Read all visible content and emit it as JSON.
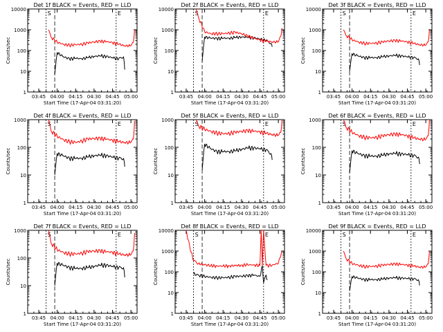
{
  "figure": {
    "xlabel_template": "Start Time (17-Apr-04 03:31:20)",
    "ylabel": "Counts/sec",
    "title_suffix": "BLACK = Events, RED = LLD",
    "y_ticks": [
      "1",
      "10",
      "100",
      "1000",
      "10000"
    ],
    "x_ticks": [
      "03:45",
      "04:00",
      "04:15",
      "04:30",
      "04:45",
      "05:00"
    ],
    "corner_labels": [
      "S",
      "E"
    ],
    "colors": {
      "events": "#000000",
      "lld": "#ff0000",
      "axes": "#000000"
    }
  },
  "chart_data": [
    {
      "type": "line",
      "title": "Det 1f BLACK = Events, RED = LLD",
      "yscale": "log",
      "ylim": [
        1,
        10000
      ],
      "xlabel": "Start Time (17-Apr-04 03:31:20)",
      "ylabel": "Counts/sec",
      "x_ticks": [
        "03:45",
        "04:00",
        "04:15",
        "04:30",
        "04:45",
        "05:00"
      ],
      "series": [
        {
          "name": "Events",
          "color": "#000000",
          "x": [
            "03:58",
            "04:00",
            "04:05",
            "04:10",
            "04:15",
            "04:20",
            "04:25",
            "04:30",
            "04:35",
            "04:40",
            "04:45",
            "04:50",
            "04:54",
            "04:55"
          ],
          "values": [
            7,
            80,
            50,
            40,
            42,
            40,
            45,
            52,
            55,
            52,
            45,
            40,
            50,
            12
          ]
        },
        {
          "name": "LLD",
          "color": "#ff0000",
          "x": [
            "03:53",
            "03:55",
            "04:00",
            "04:05",
            "04:10",
            "04:15",
            "04:20",
            "04:25",
            "04:30",
            "04:35",
            "04:40",
            "04:45",
            "04:50",
            "04:55",
            "05:00",
            "05:02",
            "05:03"
          ],
          "values": [
            1000,
            450,
            250,
            200,
            180,
            190,
            200,
            230,
            260,
            280,
            270,
            240,
            200,
            170,
            170,
            250,
            1000
          ]
        }
      ]
    },
    {
      "type": "line",
      "title": "Det 2f BLACK = Events, RED = LLD",
      "yscale": "log",
      "ylim": [
        1,
        10000
      ],
      "xlabel": "Start Time (17-Apr-04 03:31:20)",
      "ylabel": "Counts/sec",
      "x_ticks": [
        "03:45",
        "04:00",
        "04:15",
        "04:30",
        "04:45",
        "05:00"
      ],
      "series": [
        {
          "name": "Events",
          "color": "#000000",
          "x": [
            "03:58",
            "04:00",
            "04:05",
            "04:10",
            "04:15",
            "04:20",
            "04:25",
            "04:30",
            "04:35",
            "04:40",
            "04:45",
            "04:50",
            "04:54",
            "04:55"
          ],
          "values": [
            30,
            450,
            400,
            380,
            390,
            390,
            420,
            450,
            430,
            410,
            360,
            310,
            220,
            150
          ]
        },
        {
          "name": "LLD",
          "color": "#ff0000",
          "x": [
            "03:53",
            "03:55",
            "04:00",
            "04:05",
            "04:10",
            "04:15",
            "04:20",
            "04:25",
            "04:30",
            "04:35",
            "04:40",
            "04:45",
            "04:50",
            "04:55",
            "05:00",
            "05:02",
            "05:03"
          ],
          "values": [
            10000,
            4000,
            800,
            650,
            650,
            650,
            700,
            750,
            650,
            500,
            400,
            320,
            280,
            260,
            260,
            500,
            1200
          ]
        }
      ]
    },
    {
      "type": "line",
      "title": "Det 3f BLACK = Events, RED = LLD",
      "yscale": "log",
      "ylim": [
        1,
        10000
      ],
      "xlabel": "Start Time (17-Apr-04 03:31:20)",
      "ylabel": "Counts/sec",
      "x_ticks": [
        "03:45",
        "04:00",
        "04:15",
        "04:30",
        "04:45",
        "05:00"
      ],
      "series": [
        {
          "name": "Events",
          "color": "#000000",
          "x": [
            "03:58",
            "04:00",
            "04:05",
            "04:10",
            "04:15",
            "04:20",
            "04:25",
            "04:30",
            "04:35",
            "04:40",
            "04:45",
            "04:50",
            "04:54",
            "04:55"
          ],
          "values": [
            10,
            70,
            55,
            45,
            45,
            45,
            50,
            55,
            58,
            55,
            50,
            45,
            40,
            20
          ]
        },
        {
          "name": "LLD",
          "color": "#ff0000",
          "x": [
            "03:53",
            "03:55",
            "04:00",
            "04:05",
            "04:10",
            "04:15",
            "04:20",
            "04:25",
            "04:30",
            "04:35",
            "04:40",
            "04:45",
            "04:50",
            "04:55",
            "05:00",
            "05:02",
            "05:03"
          ],
          "values": [
            1000,
            550,
            330,
            260,
            220,
            220,
            230,
            260,
            290,
            300,
            290,
            260,
            220,
            190,
            180,
            260,
            1000
          ]
        }
      ]
    },
    {
      "type": "line",
      "title": "Det 4f BLACK = Events, RED = LLD",
      "yscale": "log",
      "ylim": [
        1,
        1000
      ],
      "xlabel": "Start Time (17-Apr-04 03:31:20)",
      "ylabel": "Counts/sec",
      "x_ticks": [
        "03:45",
        "04:00",
        "04:15",
        "04:30",
        "04:45",
        "05:00"
      ],
      "series": [
        {
          "name": "Events",
          "color": "#000000",
          "x": [
            "03:58",
            "04:00",
            "04:05",
            "04:10",
            "04:15",
            "04:20",
            "04:25",
            "04:30",
            "04:35",
            "04:40",
            "04:45",
            "04:50",
            "04:54",
            "04:55"
          ],
          "values": [
            10,
            60,
            50,
            40,
            40,
            40,
            45,
            50,
            52,
            50,
            45,
            40,
            40,
            20
          ]
        },
        {
          "name": "LLD",
          "color": "#ff0000",
          "x": [
            "03:53",
            "03:55",
            "04:00",
            "04:05",
            "04:10",
            "04:15",
            "04:20",
            "04:25",
            "04:30",
            "04:35",
            "04:40",
            "04:45",
            "04:50",
            "04:55",
            "05:00",
            "05:02",
            "05:03"
          ],
          "values": [
            1000,
            400,
            250,
            190,
            160,
            150,
            170,
            200,
            210,
            210,
            200,
            180,
            160,
            150,
            150,
            200,
            900
          ]
        }
      ]
    },
    {
      "type": "line",
      "title": "Det 5f BLACK = Events, RED = LLD",
      "yscale": "log",
      "ylim": [
        1,
        1000
      ],
      "xlabel": "Start Time (17-Apr-04 03:31:20)",
      "ylabel": "Counts/sec",
      "x_ticks": [
        "03:45",
        "04:00",
        "04:15",
        "04:30",
        "04:45",
        "05:00"
      ],
      "series": [
        {
          "name": "Events",
          "color": "#000000",
          "x": [
            "03:58",
            "04:00",
            "04:05",
            "04:10",
            "04:15",
            "04:20",
            "04:25",
            "04:30",
            "04:35",
            "04:40",
            "04:45",
            "04:50",
            "04:54",
            "04:55"
          ],
          "values": [
            15,
            130,
            90,
            70,
            70,
            70,
            75,
            85,
            95,
            95,
            90,
            80,
            60,
            35
          ]
        },
        {
          "name": "LLD",
          "color": "#ff0000",
          "x": [
            "03:53",
            "03:55",
            "04:00",
            "04:05",
            "04:10",
            "04:15",
            "04:20",
            "04:25",
            "04:30",
            "04:35",
            "04:40",
            "04:45",
            "04:50",
            "04:55",
            "05:00",
            "05:02",
            "05:03"
          ],
          "values": [
            1000,
            600,
            450,
            380,
            330,
            310,
            320,
            350,
            380,
            400,
            390,
            360,
            320,
            290,
            270,
            350,
            1000
          ]
        }
      ]
    },
    {
      "type": "line",
      "title": "Det 6f BLACK = Events, RED = LLD",
      "yscale": "log",
      "ylim": [
        1,
        1000
      ],
      "xlabel": "Start Time (17-Apr-04 03:31:20)",
      "ylabel": "Counts/sec",
      "x_ticks": [
        "03:45",
        "04:00",
        "04:15",
        "04:30",
        "04:45",
        "05:00"
      ],
      "series": [
        {
          "name": "Events",
          "color": "#000000",
          "x": [
            "03:58",
            "04:00",
            "04:05",
            "04:10",
            "04:15",
            "04:20",
            "04:25",
            "04:30",
            "04:35",
            "04:40",
            "04:45",
            "04:50",
            "04:54",
            "04:55"
          ],
          "values": [
            12,
            75,
            60,
            50,
            48,
            48,
            52,
            58,
            60,
            58,
            55,
            50,
            45,
            25
          ]
        },
        {
          "name": "LLD",
          "color": "#ff0000",
          "x": [
            "03:53",
            "03:55",
            "04:00",
            "04:05",
            "04:10",
            "04:15",
            "04:20",
            "04:25",
            "04:30",
            "04:35",
            "04:40",
            "04:45",
            "04:50",
            "04:55",
            "05:00",
            "05:02",
            "05:03"
          ],
          "values": [
            1000,
            550,
            350,
            270,
            230,
            220,
            230,
            260,
            290,
            300,
            290,
            260,
            220,
            200,
            190,
            260,
            1000
          ]
        }
      ]
    },
    {
      "type": "line",
      "title": "Det 7f BLACK = Events, RED = LLD",
      "yscale": "log",
      "ylim": [
        1,
        1000
      ],
      "xlabel": "Start Time (17-Apr-04 03:31:20)",
      "ylabel": "Counts/sec",
      "x_ticks": [
        "03:45",
        "04:00",
        "04:15",
        "04:30",
        "04:45",
        "05:00"
      ],
      "series": [
        {
          "name": "Events",
          "color": "#000000",
          "x": [
            "03:58",
            "04:00",
            "04:05",
            "04:10",
            "04:15",
            "04:20",
            "04:25",
            "04:30",
            "04:35",
            "04:40",
            "04:45",
            "04:50",
            "04:54",
            "04:55"
          ],
          "values": [
            10,
            65,
            55,
            45,
            42,
            42,
            45,
            50,
            55,
            55,
            50,
            45,
            45,
            20
          ]
        },
        {
          "name": "LLD",
          "color": "#ff0000",
          "x": [
            "03:53",
            "03:55",
            "04:00",
            "04:05",
            "04:10",
            "04:15",
            "04:20",
            "04:25",
            "04:30",
            "04:35",
            "04:40",
            "04:45",
            "04:50",
            "04:55",
            "05:00",
            "05:02",
            "05:03"
          ],
          "values": [
            1000,
            350,
            200,
            160,
            140,
            140,
            150,
            170,
            180,
            180,
            170,
            160,
            140,
            130,
            130,
            180,
            800
          ]
        }
      ]
    },
    {
      "type": "line",
      "title": "Det 8f BLACK = Events, RED = LLD",
      "yscale": "log",
      "ylim": [
        1,
        10000
      ],
      "xlabel": "Start Time (17-Apr-04 03:31:20)",
      "ylabel": "Counts/sec",
      "x_ticks": [
        "03:45",
        "04:00",
        "04:15",
        "04:30",
        "04:45",
        "05:00"
      ],
      "series": [
        {
          "name": "Events",
          "color": "#000000",
          "x": [
            "03:51",
            "03:55",
            "04:00",
            "04:05",
            "04:10",
            "04:15",
            "04:20",
            "04:25",
            "04:30",
            "04:35",
            "04:40",
            "04:45",
            "04:47",
            "04:48",
            "04:50",
            "04:51"
          ],
          "values": [
            80,
            70,
            60,
            55,
            52,
            52,
            55,
            60,
            62,
            65,
            70,
            60,
            200,
            30,
            70,
            40
          ]
        },
        {
          "name": "LLD",
          "color": "#ff0000",
          "x": [
            "03:45",
            "03:48",
            "03:51",
            "03:55",
            "04:00",
            "04:05",
            "04:10",
            "04:15",
            "04:20",
            "04:25",
            "04:30",
            "04:35",
            "04:40",
            "04:45",
            "04:46",
            "04:47",
            "04:48",
            "04:50",
            "04:55",
            "05:00",
            "05:03"
          ],
          "values": [
            10000,
            1500,
            350,
            250,
            220,
            200,
            190,
            190,
            195,
            200,
            210,
            220,
            215,
            200,
            10000,
            200,
            10000,
            200,
            210,
            260,
            1000
          ]
        }
      ]
    },
    {
      "type": "line",
      "title": "Det 9f BLACK = Events, RED = LLD",
      "yscale": "log",
      "ylim": [
        1,
        10000
      ],
      "xlabel": "Start Time (17-Apr-04 03:31:20)",
      "ylabel": "Counts/sec",
      "x_ticks": [
        "03:45",
        "04:00",
        "04:15",
        "04:30",
        "04:45",
        "05:00"
      ],
      "series": [
        {
          "name": "Events",
          "color": "#000000",
          "x": [
            "03:58",
            "04:00",
            "04:05",
            "04:10",
            "04:15",
            "04:20",
            "04:25",
            "04:30",
            "04:35",
            "04:40",
            "04:45",
            "04:50",
            "04:54",
            "04:55"
          ],
          "values": [
            12,
            60,
            50,
            42,
            42,
            42,
            45,
            50,
            52,
            50,
            48,
            45,
            42,
            22
          ]
        },
        {
          "name": "LLD",
          "color": "#ff0000",
          "x": [
            "03:53",
            "03:55",
            "04:00",
            "04:05",
            "04:10",
            "04:15",
            "04:20",
            "04:25",
            "04:30",
            "04:35",
            "04:40",
            "04:45",
            "04:50",
            "04:55",
            "05:00",
            "05:02",
            "05:03"
          ],
          "values": [
            1000,
            450,
            250,
            210,
            180,
            180,
            190,
            210,
            230,
            240,
            230,
            210,
            190,
            170,
            170,
            240,
            1000
          ]
        }
      ]
    }
  ]
}
